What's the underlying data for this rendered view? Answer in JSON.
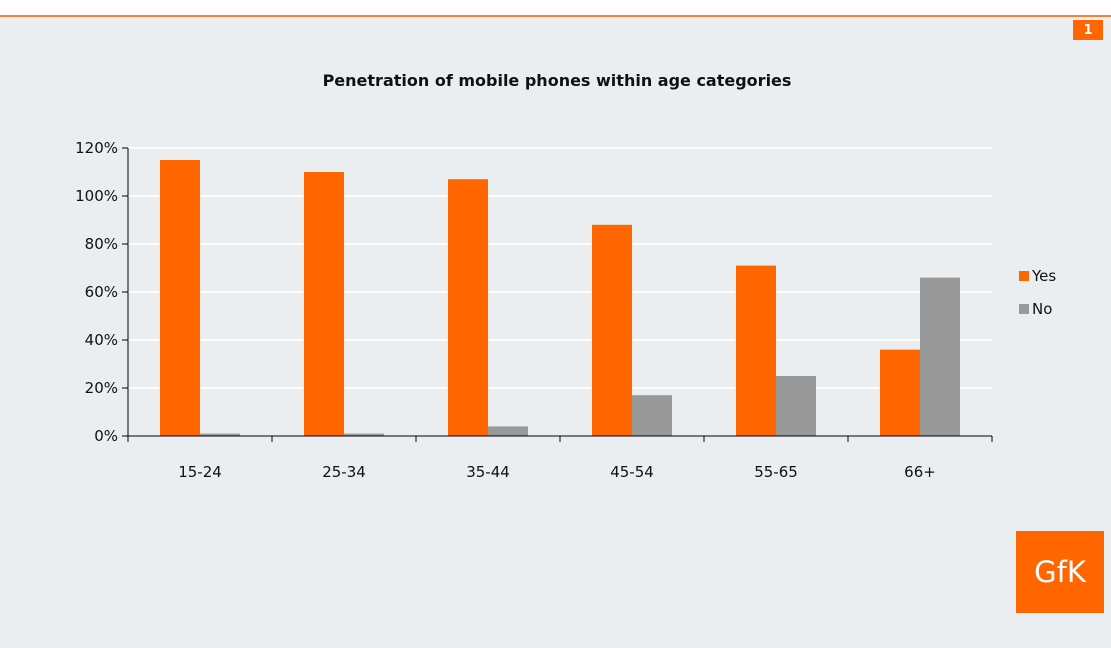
{
  "page_badge": "1",
  "logo_text": "GfK",
  "colors": {
    "yes": "#ff6600",
    "no": "#999999",
    "accent": "#ff6600"
  },
  "chart_data": {
    "type": "bar",
    "title": "Penetration of mobile phones within age categories",
    "categories": [
      "15-24",
      "25-34",
      "35-44",
      "45-54",
      "55-65",
      "66+"
    ],
    "series": [
      {
        "name": "Yes",
        "values": [
          115,
          110,
          107,
          88,
          71,
          36
        ]
      },
      {
        "name": "No",
        "values": [
          1,
          1,
          4,
          17,
          25,
          66
        ]
      }
    ],
    "yticks": [
      "0%",
      "20%",
      "40%",
      "60%",
      "80%",
      "100%",
      "120%"
    ],
    "ylim": [
      0,
      120
    ],
    "grid": true,
    "legend": "right"
  }
}
